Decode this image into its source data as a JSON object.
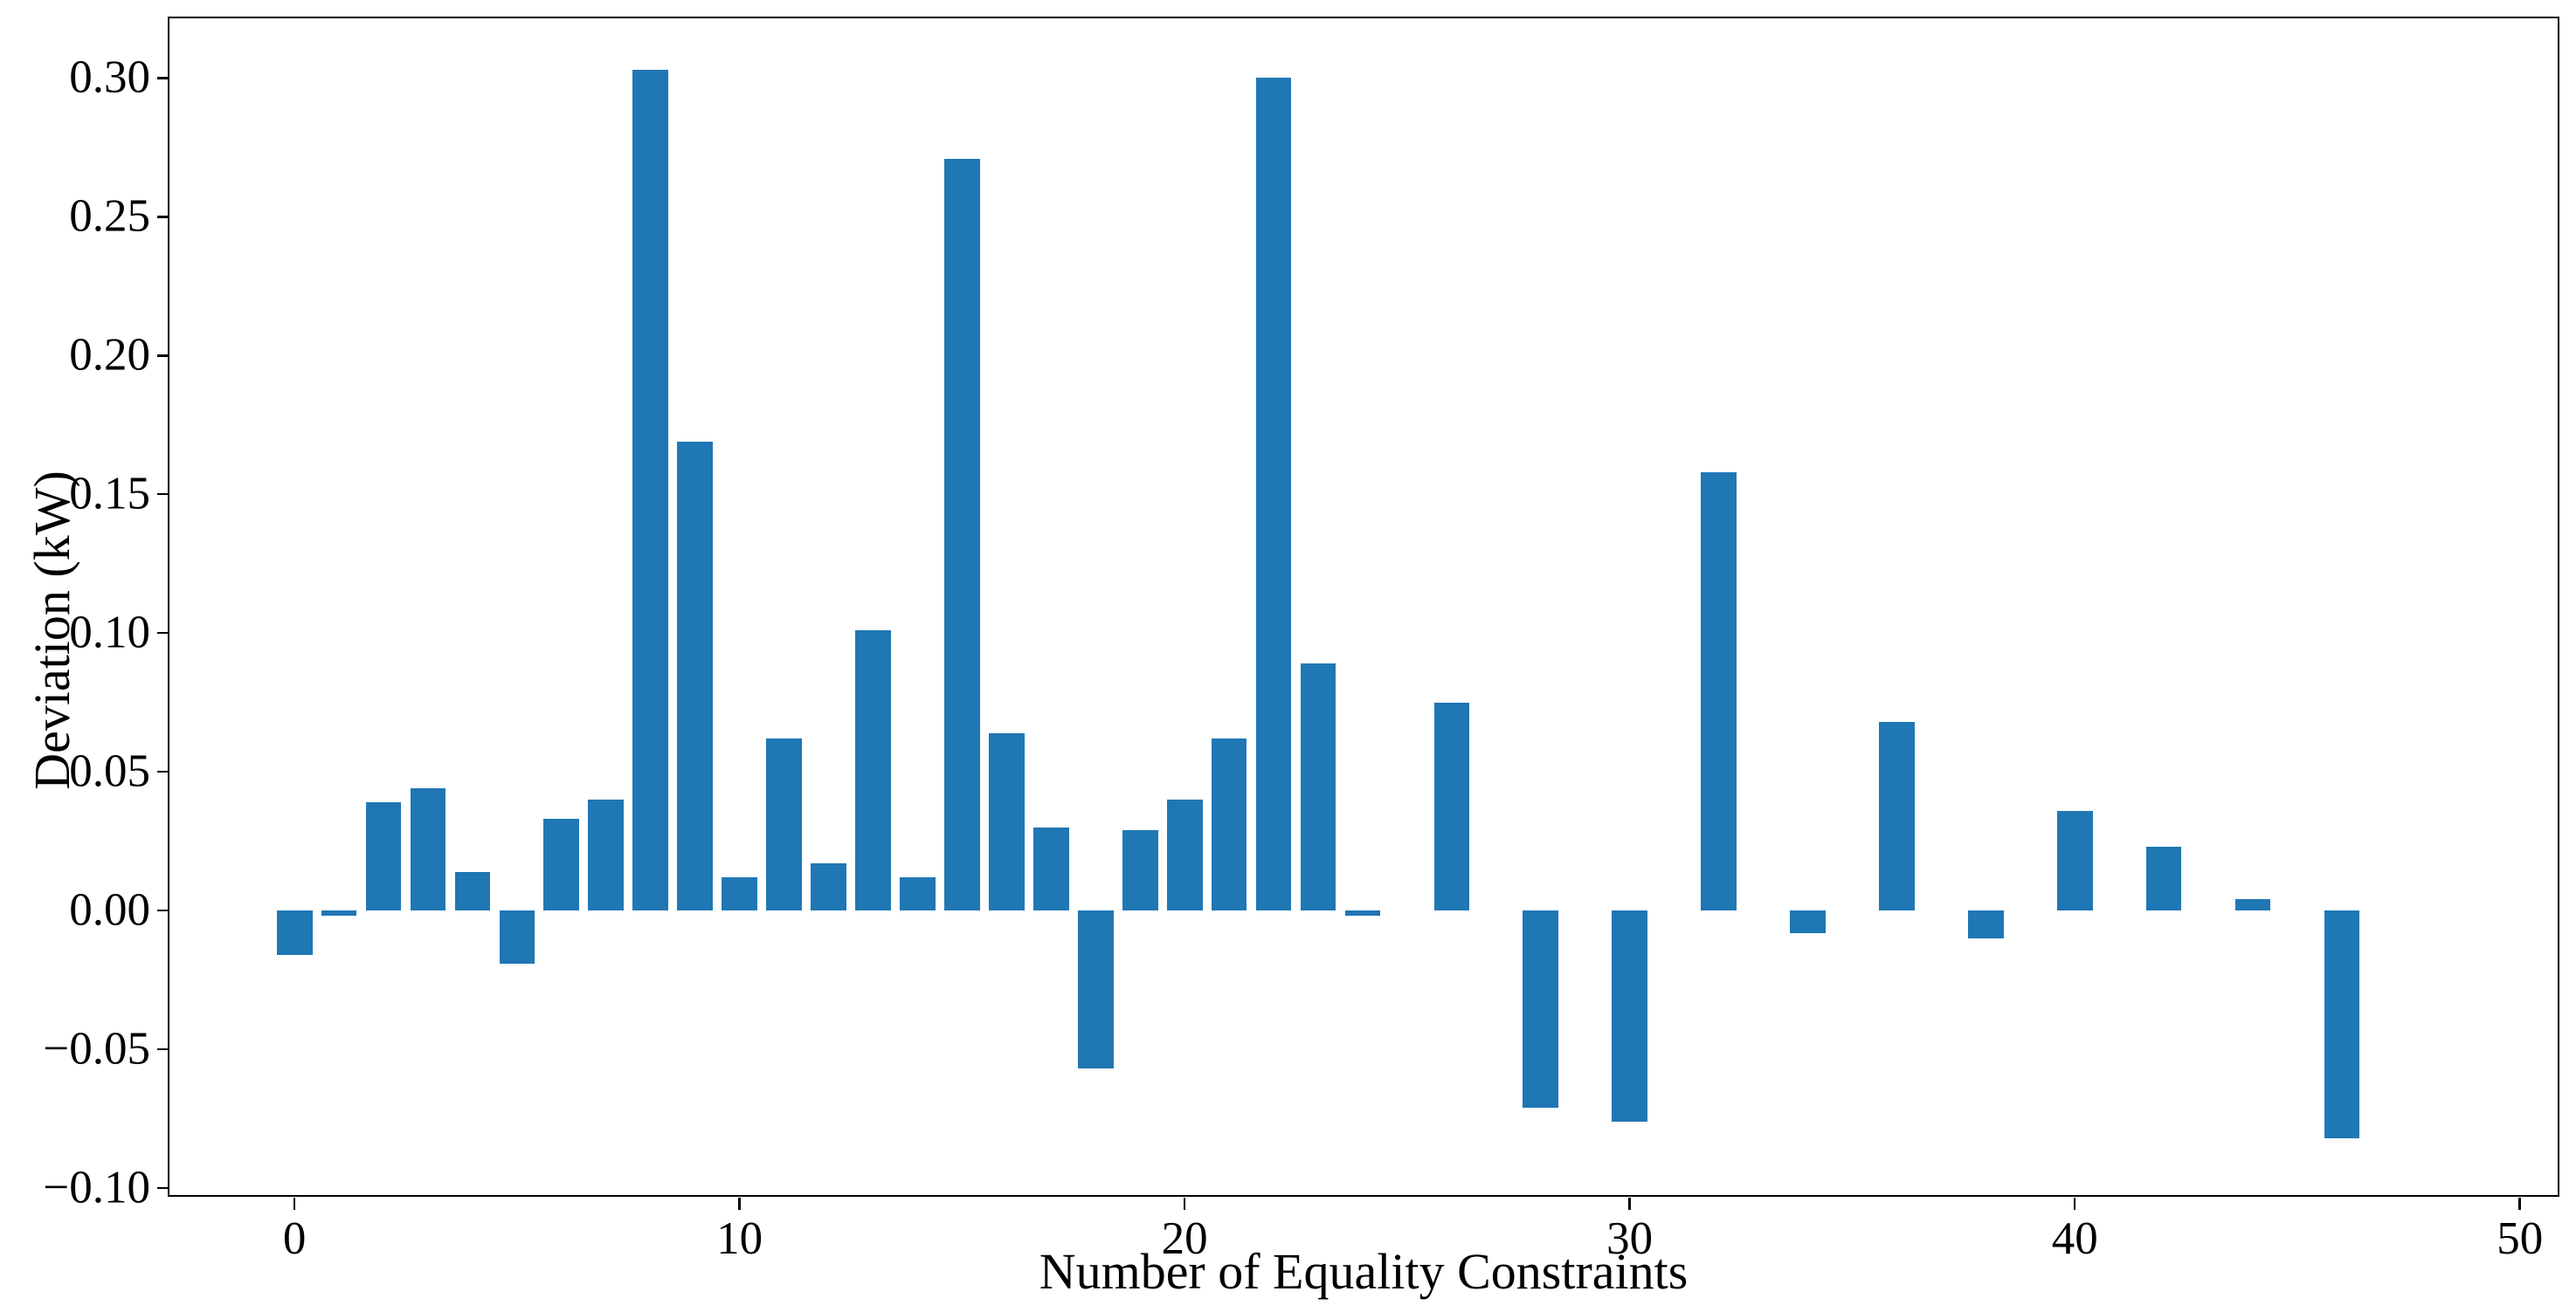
{
  "chart_data": {
    "type": "bar",
    "title": "",
    "xlabel": "Number of Equality Constraints",
    "ylabel": "Deviation (kW)",
    "bar_color": "#1f77b4",
    "axis_color": "#000000",
    "background_color": "#ffffff",
    "grid": false,
    "legend_position": "none",
    "bar_width": 0.8,
    "xlim": [
      -2.81,
      50.85
    ],
    "ylim": [
      -0.1025,
      0.3215
    ],
    "xticks": [
      0,
      10,
      20,
      30,
      40,
      50
    ],
    "xtick_labels": [
      "0",
      "10",
      "20",
      "30",
      "40",
      "50"
    ],
    "yticks": [
      0.3,
      0.25,
      0.2,
      0.15,
      0.1,
      0.05,
      0.0,
      -0.05,
      -0.1
    ],
    "ytick_labels": [
      "0.30",
      "0.25",
      "0.20",
      "0.15",
      "0.10",
      "0.05",
      "0.00",
      "−0.05",
      "−0.10"
    ],
    "x": [
      0,
      1,
      2,
      3,
      4,
      5,
      6,
      7,
      8,
      9,
      10,
      11,
      12,
      13,
      14,
      15,
      16,
      17,
      18,
      19,
      20,
      21,
      22,
      23,
      24,
      25,
      26,
      27,
      28,
      29,
      30,
      31,
      32,
      33,
      34,
      35,
      36,
      37,
      38,
      39,
      40,
      41,
      42,
      43,
      44,
      45,
      46
    ],
    "values": [
      -0.016,
      -0.002,
      0.039,
      0.044,
      0.014,
      -0.019,
      0.033,
      0.04,
      0.303,
      0.169,
      0.012,
      0.062,
      0.017,
      0.101,
      0.012,
      0.271,
      0.064,
      0.03,
      -0.057,
      0.029,
      0.04,
      0.062,
      0.3,
      0.089,
      -0.002,
      0,
      0.075,
      0,
      -0.071,
      0,
      -0.076,
      0,
      0.158,
      0,
      -0.008,
      0,
      0.068,
      0,
      -0.01,
      0,
      0.036,
      0,
      0.023,
      0,
      0.004,
      0,
      -0.082
    ]
  }
}
